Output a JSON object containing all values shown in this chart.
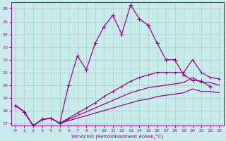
{
  "xlabel": "Windchill (Refroidissement éolien,°C)",
  "xlim": [
    -0.5,
    23.5
  ],
  "ylim": [
    16.8,
    26.5
  ],
  "yticks": [
    17,
    18,
    19,
    20,
    21,
    22,
    23,
    24,
    25,
    26
  ],
  "xticks": [
    0,
    1,
    2,
    3,
    4,
    5,
    6,
    7,
    8,
    9,
    10,
    11,
    12,
    13,
    14,
    15,
    16,
    17,
    18,
    19,
    20,
    21,
    22,
    23
  ],
  "background_color": "#c8ecea",
  "line_color": "#990099",
  "grid_color": "#b0b0b0",
  "series": {
    "line1_spiky": {
      "x": [
        0,
        1,
        2,
        3,
        4,
        5,
        6,
        7,
        8,
        9,
        10,
        11,
        12,
        13,
        14,
        15,
        16,
        17,
        18,
        19,
        20,
        21,
        22,
        23
      ],
      "y": [
        18.4,
        17.9,
        16.8,
        17.3,
        17.4,
        17.0,
        20.0,
        22.3,
        21.2,
        23.3,
        24.6,
        25.5,
        24.0,
        26.3,
        25.2,
        24.7,
        23.3,
        22.0,
        22.0,
        20.8,
        20.4,
        20.3,
        19.9,
        null
      ]
    },
    "line2_upper": {
      "x": [
        0,
        1,
        2,
        3,
        4,
        5,
        6,
        7,
        8,
        9,
        10,
        11,
        12,
        13,
        14,
        15,
        16,
        17,
        18,
        19,
        20,
        21,
        22,
        23
      ],
      "y": [
        18.4,
        17.9,
        16.8,
        17.3,
        17.4,
        17.0,
        17.4,
        17.8,
        18.2,
        18.6,
        19.1,
        19.5,
        19.9,
        20.3,
        20.6,
        20.8,
        21.0,
        21.0,
        21.0,
        21.0,
        22.0,
        21.0,
        20.6,
        20.5
      ]
    },
    "line3_mid": {
      "x": [
        0,
        1,
        2,
        3,
        4,
        5,
        6,
        7,
        8,
        9,
        10,
        11,
        12,
        13,
        14,
        15,
        16,
        17,
        18,
        19,
        20,
        21,
        22,
        23
      ],
      "y": [
        18.4,
        17.9,
        16.8,
        17.3,
        17.4,
        17.0,
        17.3,
        17.6,
        17.9,
        18.2,
        18.5,
        18.8,
        19.1,
        19.4,
        19.6,
        19.8,
        19.9,
        20.0,
        20.1,
        20.2,
        20.6,
        20.2,
        20.2,
        20.0
      ]
    },
    "line4_low": {
      "x": [
        0,
        1,
        2,
        3,
        4,
        5,
        6,
        7,
        8,
        9,
        10,
        11,
        12,
        13,
        14,
        15,
        16,
        17,
        18,
        19,
        20,
        21,
        22,
        23
      ],
      "y": [
        18.4,
        17.9,
        16.8,
        17.3,
        17.4,
        17.0,
        17.2,
        17.4,
        17.6,
        17.8,
        18.0,
        18.2,
        18.4,
        18.6,
        18.8,
        18.9,
        19.1,
        19.2,
        19.3,
        19.4,
        19.7,
        19.5,
        19.5,
        19.4
      ]
    }
  }
}
